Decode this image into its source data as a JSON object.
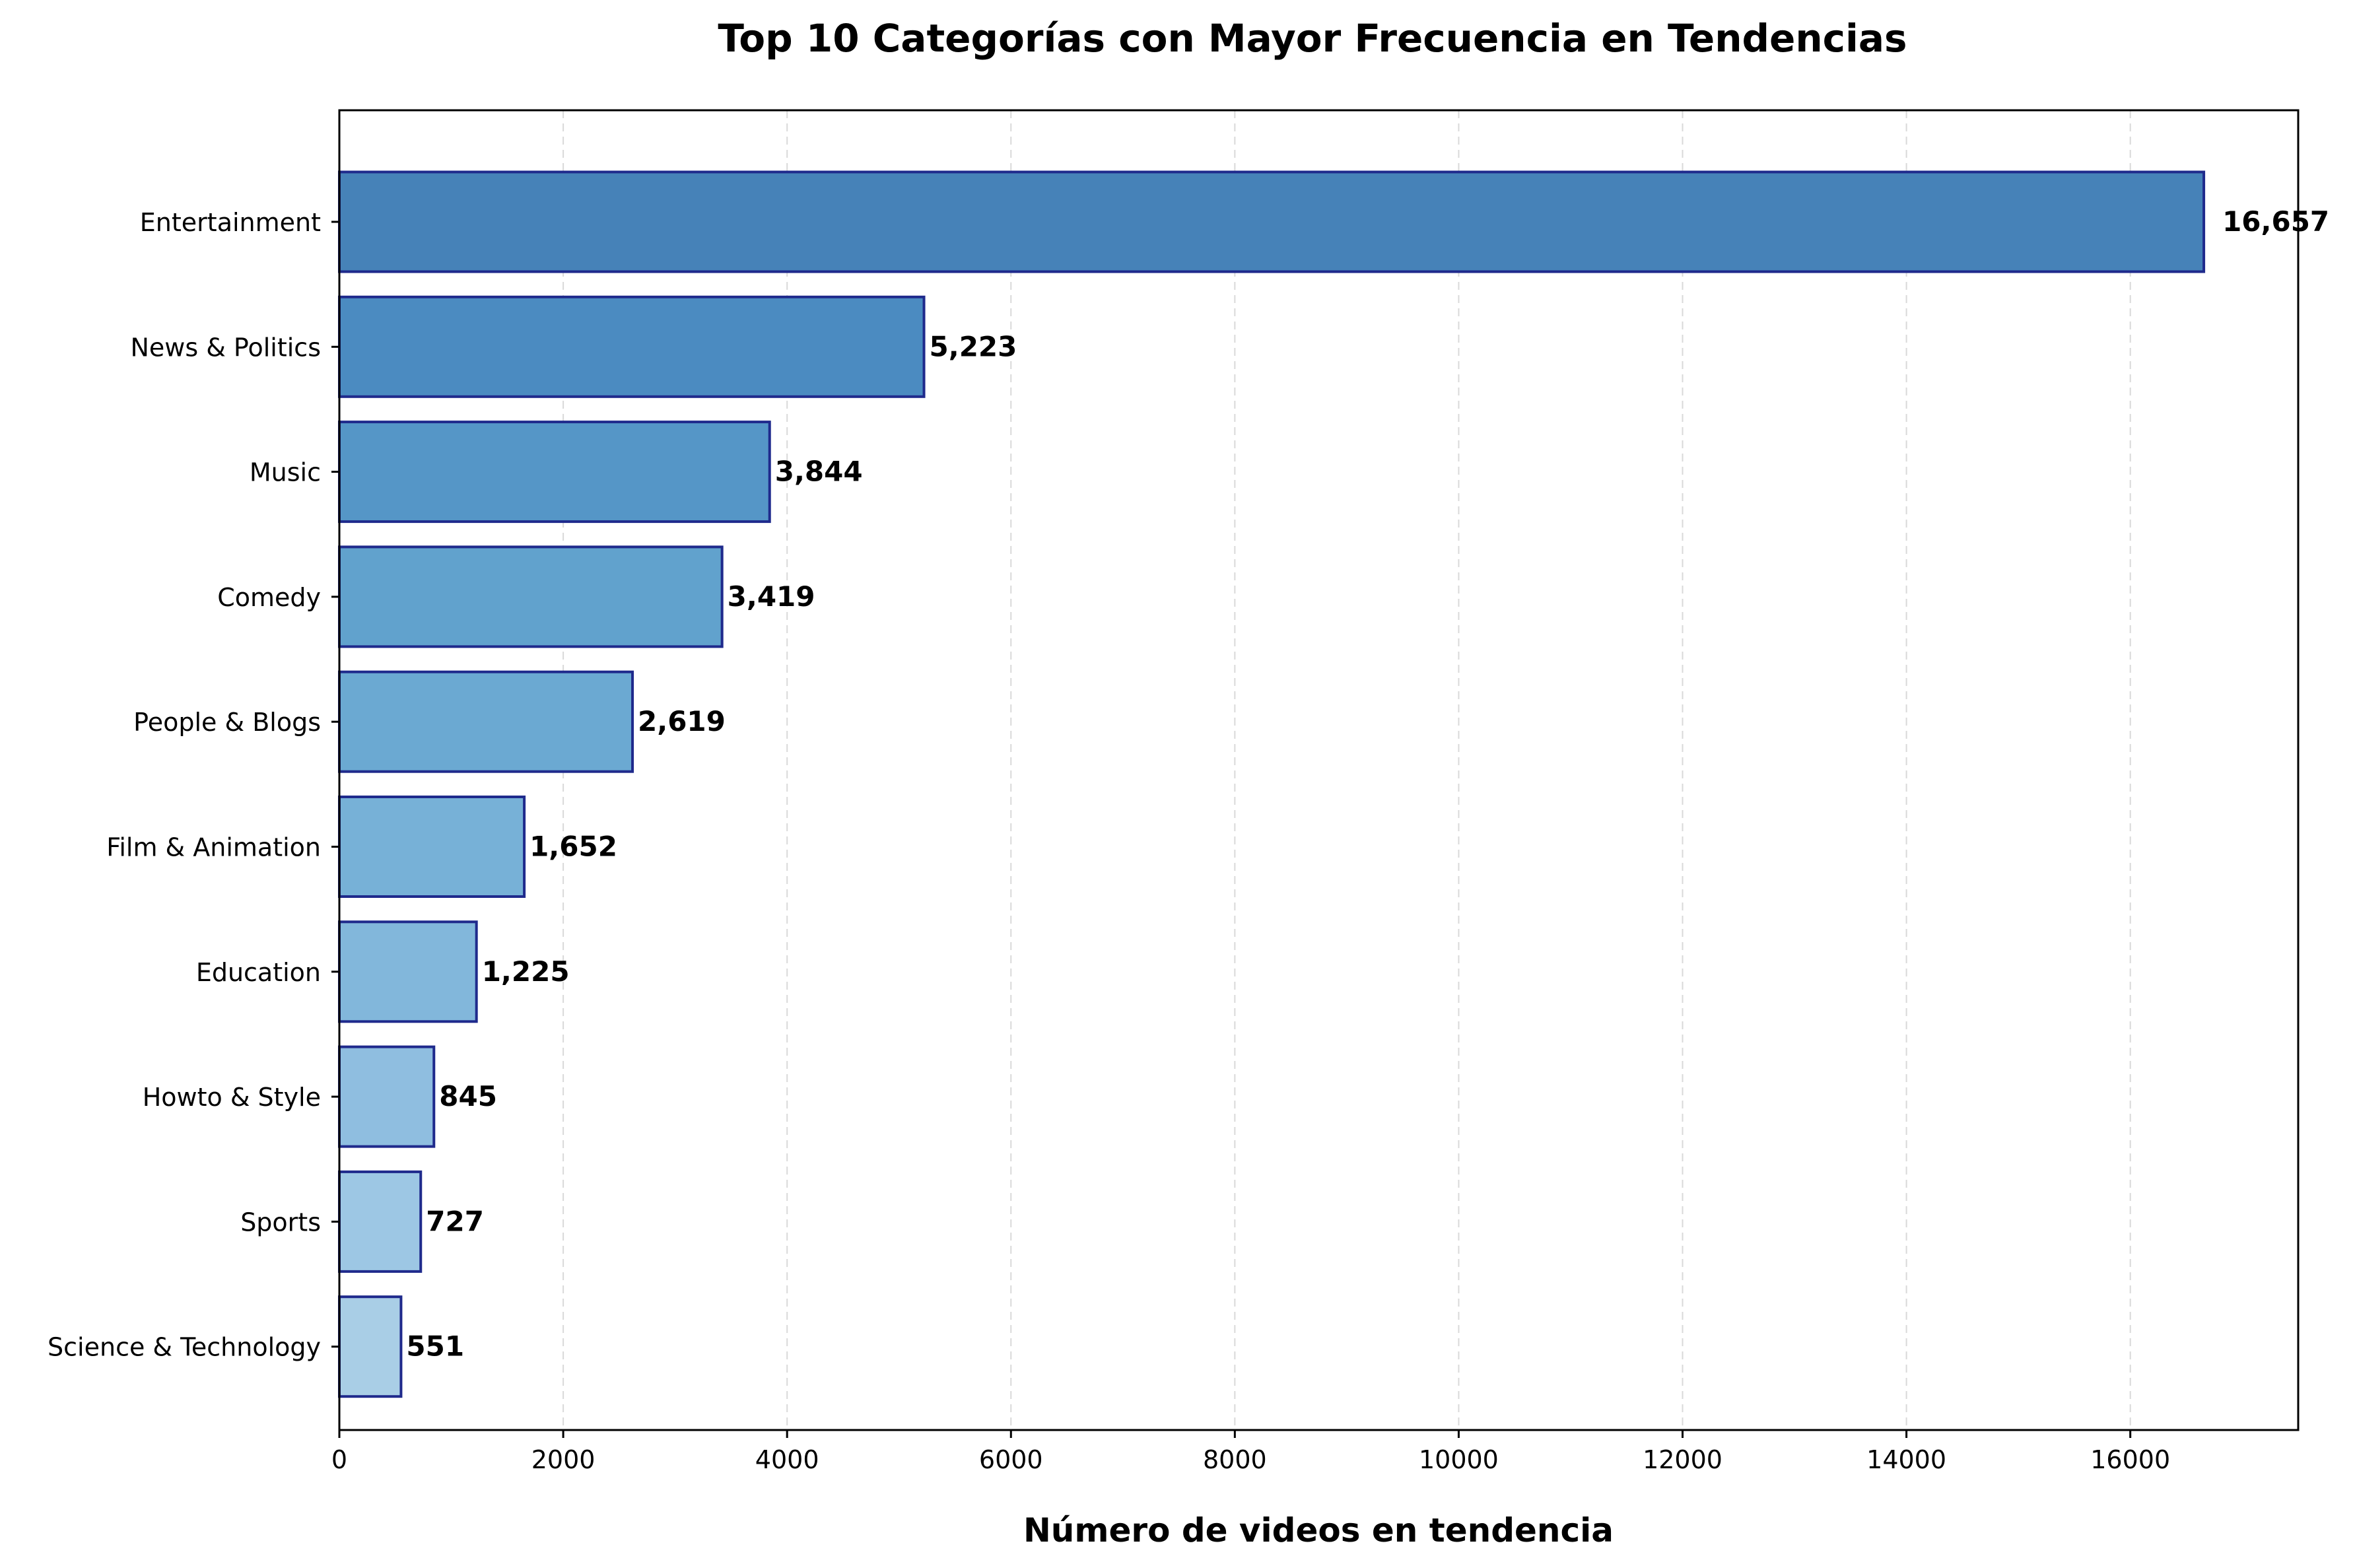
{
  "chart_data": {
    "type": "bar",
    "orientation": "horizontal",
    "title": "Top 10 Categorías con Mayor Frecuencia en Tendencias",
    "xlabel": "Número de videos en tendencia",
    "ylabel": "",
    "xlim": [
      0,
      17500
    ],
    "xticks": [
      0,
      2000,
      4000,
      6000,
      8000,
      10000,
      12000,
      14000,
      16000
    ],
    "xtick_labels": [
      "0",
      "2000",
      "4000",
      "6000",
      "8000",
      "10000",
      "12000",
      "14000",
      "16000"
    ],
    "grid": "vertical dashed",
    "categories": [
      "Entertainment",
      "News & Politics",
      "Music",
      "Comedy",
      "People & Blogs",
      "Film & Animation",
      "Education",
      "Howto & Style",
      "Sports",
      "Science & Technology"
    ],
    "values": [
      16657,
      5223,
      3844,
      3419,
      2619,
      1652,
      1225,
      845,
      727,
      551
    ],
    "data_labels": [
      "16,657",
      "5,223",
      "3,844",
      "3,419",
      "2,619",
      "1,652",
      "1,225",
      "845",
      "727",
      "551"
    ],
    "colors": {
      "bars": [
        "#4682b8",
        "#4b8bc1",
        "#5596c7",
        "#61a2cd",
        "#6ba9d2",
        "#77b1d7",
        "#82b7db",
        "#8fbee0",
        "#9dc7e4",
        "#a9cee6"
      ],
      "bar_edge": "#1f2a8c",
      "text": "#000000",
      "grid": "#d9d9d9",
      "axis": "#000000"
    }
  }
}
